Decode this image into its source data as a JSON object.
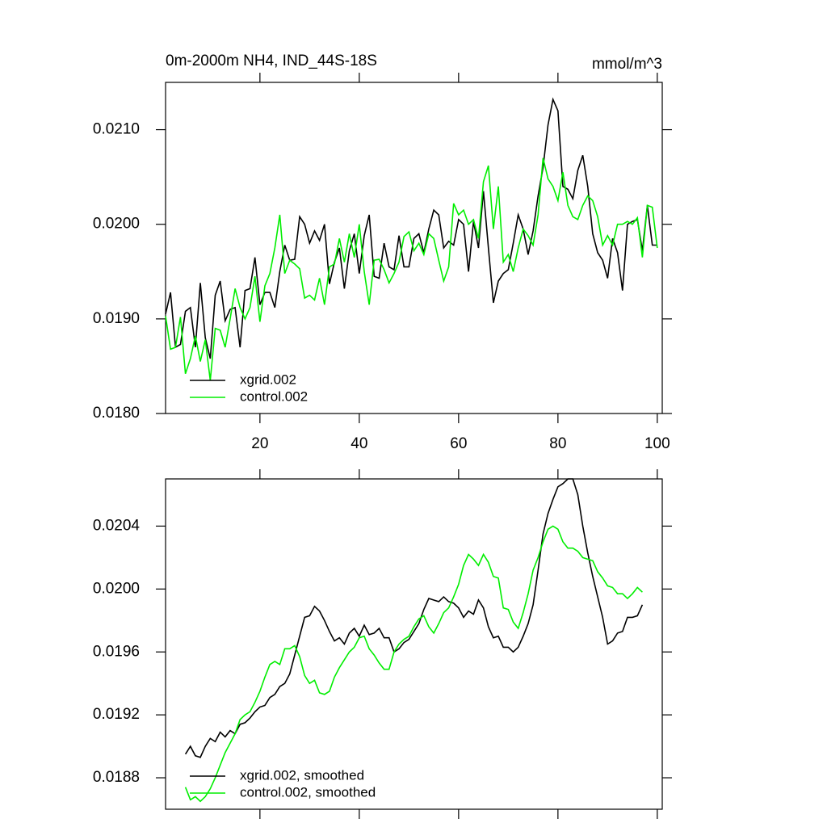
{
  "chart_data": [
    {
      "type": "line",
      "title": "0m-2000m NH4, IND_44S-18S",
      "right_title": "mmol/m^3",
      "x": [
        1,
        2,
        3,
        4,
        5,
        6,
        7,
        8,
        9,
        10,
        11,
        12,
        13,
        14,
        15,
        16,
        17,
        18,
        19,
        20,
        21,
        22,
        23,
        24,
        25,
        26,
        27,
        28,
        29,
        30,
        31,
        32,
        33,
        34,
        35,
        36,
        37,
        38,
        39,
        40,
        41,
        42,
        43,
        44,
        45,
        46,
        47,
        48,
        49,
        50,
        51,
        52,
        53,
        54,
        55,
        56,
        57,
        58,
        59,
        60,
        61,
        62,
        63,
        64,
        65,
        66,
        67,
        68,
        69,
        70,
        71,
        72,
        73,
        74,
        75,
        76,
        77,
        78,
        79,
        80,
        81,
        82,
        83,
        84,
        85,
        86,
        87,
        88,
        89,
        90,
        91,
        92,
        93,
        94,
        95,
        96,
        97,
        98,
        99,
        100
      ],
      "series": [
        {
          "name": "xgrid.002",
          "color": "#000000",
          "values": [
            0.01905,
            0.01928,
            0.0187,
            0.01873,
            0.01908,
            0.01912,
            0.0187,
            0.01938,
            0.0188,
            0.01858,
            0.01925,
            0.0194,
            0.01898,
            0.0191,
            0.01912,
            0.0187,
            0.0193,
            0.01932,
            0.01965,
            0.01915,
            0.01928,
            0.01928,
            0.01912,
            0.0195,
            0.01978,
            0.01962,
            0.01963,
            0.02008,
            0.02,
            0.0198,
            0.01993,
            0.01983,
            0.02,
            0.01937,
            0.0196,
            0.01975,
            0.01932,
            0.01972,
            0.0199,
            0.01948,
            0.01988,
            0.0201,
            0.01945,
            0.01943,
            0.0198,
            0.01955,
            0.01952,
            0.01988,
            0.01955,
            0.01955,
            0.01985,
            0.0199,
            0.0197,
            0.01995,
            0.02015,
            0.0201,
            0.01975,
            0.01982,
            0.01978,
            0.02005,
            0.02,
            0.0195,
            0.02003,
            0.01975,
            0.02035,
            0.01975,
            0.01917,
            0.0194,
            0.01948,
            0.01952,
            0.0198,
            0.0201,
            0.01995,
            0.01968,
            0.01993,
            0.0203,
            0.0206,
            0.02105,
            0.02132,
            0.0212,
            0.0204,
            0.02037,
            0.02027,
            0.02057,
            0.02073,
            0.0204,
            0.0199,
            0.0197,
            0.01962,
            0.01943,
            0.01985,
            0.0197,
            0.0193,
            0.02,
            0.02003,
            0.02005,
            0.01972,
            0.0202,
            0.01978,
            0.01978
          ]
        },
        {
          "name": "control.002",
          "color": "#00ee00",
          "values": [
            0.01903,
            0.01868,
            0.0187,
            0.01902,
            0.01842,
            0.01858,
            0.01882,
            0.01855,
            0.01878,
            0.01835,
            0.0189,
            0.01888,
            0.0187,
            0.019,
            0.01932,
            0.01912,
            0.019,
            0.01912,
            0.01945,
            0.01897,
            0.01935,
            0.01948,
            0.01975,
            0.0201,
            0.01948,
            0.01962,
            0.01958,
            0.01953,
            0.01922,
            0.01925,
            0.0192,
            0.01943,
            0.01915,
            0.01955,
            0.01958,
            0.01985,
            0.0196,
            0.0199,
            0.01965,
            0.02,
            0.0195,
            0.01915,
            0.01962,
            0.01963,
            0.01952,
            0.01938,
            0.01948,
            0.0196,
            0.01987,
            0.01992,
            0.01972,
            0.0198,
            0.01968,
            0.0199,
            0.01985,
            0.01962,
            0.0194,
            0.01955,
            0.02022,
            0.0201,
            0.02015,
            0.02,
            0.02005,
            0.01985,
            0.02045,
            0.02062,
            0.01995,
            0.0204,
            0.0196,
            0.01968,
            0.0195,
            0.01975,
            0.01995,
            0.01988,
            0.01978,
            0.0201,
            0.0207,
            0.02048,
            0.0204,
            0.02025,
            0.02055,
            0.0202,
            0.02008,
            0.02005,
            0.0202,
            0.0203,
            0.02025,
            0.02008,
            0.01978,
            0.01988,
            0.01978,
            0.02,
            0.02,
            0.02003,
            0.02,
            0.02007,
            0.01965,
            0.0202,
            0.02018,
            0.01975
          ]
        }
      ],
      "xlim": [
        1,
        101
      ],
      "xticks": [
        20,
        40,
        60,
        80,
        100
      ],
      "show_xtick_labels": true,
      "ylim": [
        0.018,
        0.0215
      ],
      "yticks": [
        {
          "value": 0.018,
          "label": "0.0180"
        },
        {
          "value": 0.019,
          "label": "0.0190"
        },
        {
          "value": 0.02,
          "label": "0.0200"
        },
        {
          "value": 0.021,
          "label": "0.0210"
        }
      ],
      "grid": false,
      "legend": "lower left"
    },
    {
      "type": "line",
      "x": [
        5,
        6,
        7,
        8,
        9,
        10,
        11,
        12,
        13,
        14,
        15,
        16,
        17,
        18,
        19,
        20,
        21,
        22,
        23,
        24,
        25,
        26,
        27,
        28,
        29,
        30,
        31,
        32,
        33,
        34,
        35,
        36,
        37,
        38,
        39,
        40,
        41,
        42,
        43,
        44,
        45,
        46,
        47,
        48,
        49,
        50,
        51,
        52,
        53,
        54,
        55,
        56,
        57,
        58,
        59,
        60,
        61,
        62,
        63,
        64,
        65,
        66,
        67,
        68,
        69,
        70,
        71,
        72,
        73,
        74,
        75,
        76,
        77,
        78,
        79,
        80,
        81,
        82,
        83,
        84,
        85,
        86,
        87,
        88,
        89,
        90,
        91,
        92,
        93,
        94,
        95,
        96,
        97
      ],
      "series": [
        {
          "name": "xgrid.002, smoothed",
          "color": "#000000",
          "values": [
            0.01895,
            0.019,
            0.01894,
            0.01893,
            0.019,
            0.01905,
            0.01903,
            0.01909,
            0.01906,
            0.0191,
            0.01908,
            0.01914,
            0.01915,
            0.01918,
            0.01922,
            0.01925,
            0.01926,
            0.01931,
            0.01933,
            0.01938,
            0.0194,
            0.01946,
            0.01958,
            0.0197,
            0.01982,
            0.01983,
            0.01989,
            0.01986,
            0.0198,
            0.01973,
            0.01967,
            0.01969,
            0.01965,
            0.01972,
            0.01975,
            0.0197,
            0.01977,
            0.01971,
            0.01972,
            0.01975,
            0.01969,
            0.01969,
            0.0196,
            0.01962,
            0.01966,
            0.01968,
            0.01973,
            0.01978,
            0.01987,
            0.01994,
            0.01993,
            0.01992,
            0.01995,
            0.01992,
            0.01991,
            0.01988,
            0.01982,
            0.01986,
            0.01984,
            0.01993,
            0.01988,
            0.01976,
            0.01969,
            0.0197,
            0.01963,
            0.01963,
            0.0196,
            0.01963,
            0.0197,
            0.01978,
            0.0199,
            0.02012,
            0.02035,
            0.02048,
            0.02057,
            0.02065,
            0.02067,
            0.0207,
            0.0207,
            0.0206,
            0.0204,
            0.02023,
            0.02008,
            0.01995,
            0.01982,
            0.01965,
            0.01967,
            0.01972,
            0.01973,
            0.01982,
            0.01982,
            0.01983,
            0.0199
          ]
        },
        {
          "name": "control.002, smoothed",
          "color": "#00ee00",
          "values": [
            0.01874,
            0.01866,
            0.01868,
            0.01865,
            0.01868,
            0.01873,
            0.0188,
            0.01888,
            0.01896,
            0.01902,
            0.01908,
            0.01917,
            0.0192,
            0.01922,
            0.01928,
            0.01935,
            0.01944,
            0.01952,
            0.01954,
            0.01952,
            0.01962,
            0.01962,
            0.01964,
            0.01957,
            0.01945,
            0.0194,
            0.01942,
            0.01934,
            0.01933,
            0.01935,
            0.01944,
            0.0195,
            0.01955,
            0.0196,
            0.01963,
            0.01969,
            0.0197,
            0.01962,
            0.01958,
            0.01953,
            0.01949,
            0.01949,
            0.0196,
            0.01965,
            0.01968,
            0.0197,
            0.01976,
            0.01981,
            0.01983,
            0.01976,
            0.01972,
            0.01978,
            0.01985,
            0.01988,
            0.01995,
            0.02003,
            0.02015,
            0.02022,
            0.02019,
            0.02015,
            0.02022,
            0.02017,
            0.02008,
            0.02007,
            0.01988,
            0.01987,
            0.01979,
            0.01975,
            0.01985,
            0.01997,
            0.02012,
            0.0202,
            0.0203,
            0.02038,
            0.0204,
            0.02038,
            0.0203,
            0.02026,
            0.02026,
            0.02024,
            0.0202,
            0.02019,
            0.02018,
            0.02011,
            0.02007,
            0.02002,
            0.02001,
            0.01997,
            0.01997,
            0.01994,
            0.01997,
            0.02001,
            0.01998
          ]
        }
      ],
      "xlim": [
        1,
        101
      ],
      "xticks": [
        20,
        40,
        60,
        80,
        100
      ],
      "show_xtick_labels": false,
      "ylim": [
        0.0186,
        0.0207
      ],
      "yticks": [
        {
          "value": 0.0188,
          "label": "0.0188"
        },
        {
          "value": 0.0192,
          "label": "0.0192"
        },
        {
          "value": 0.0196,
          "label": "0.0196"
        },
        {
          "value": 0.02,
          "label": "0.0200"
        },
        {
          "value": 0.0204,
          "label": "0.0204"
        }
      ],
      "grid": false,
      "legend": "lower left"
    }
  ]
}
